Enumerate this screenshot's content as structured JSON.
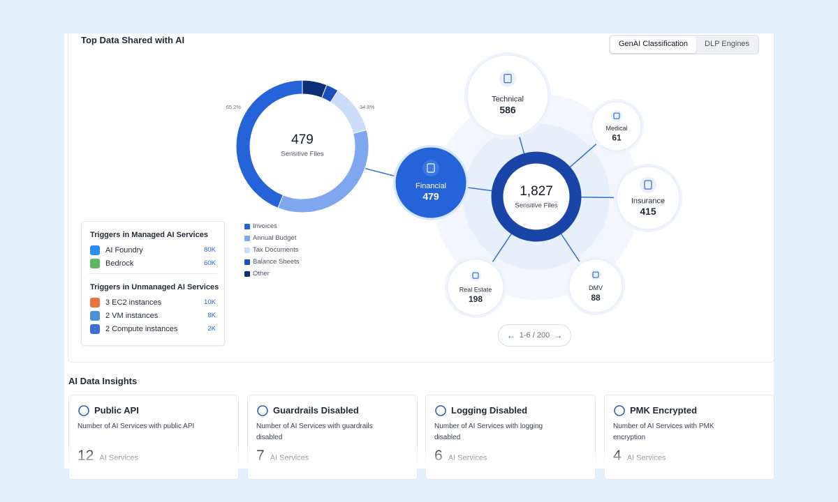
{
  "panel": {
    "title": "Top Data Shared with AI",
    "tabs": [
      "GenAI Classification",
      "DLP Engines"
    ]
  },
  "donut": {
    "type": "pie",
    "total": 479,
    "total_label": "Sensitive Files",
    "callouts": [
      "65.2%",
      "34.8%"
    ],
    "categories": [
      "Invoices",
      "Annual Budget",
      "Tax Documents",
      "Balance Sheets",
      "Other"
    ],
    "values": [
      44,
      35,
      12,
      3,
      6
    ],
    "colors": [
      "#2563d9",
      "#7ea7f0",
      "#cbdcf8",
      "#1c4fbd",
      "#0d2f78"
    ]
  },
  "triggers": {
    "managed": {
      "title": "Triggers in Managed AI Services",
      "items": [
        {
          "name": "AI Foundry",
          "count": "80K"
        },
        {
          "name": "Bedrock",
          "count": "60K"
        }
      ]
    },
    "unmanaged": {
      "title": "Triggers in Unmanaged AI Services",
      "items": [
        {
          "name": "3 EC2 instances",
          "count": "10K"
        },
        {
          "name": "2 VM instances",
          "count": "8K"
        },
        {
          "name": "2 Compute instances",
          "count": "2K"
        }
      ]
    }
  },
  "bubbles": {
    "center": {
      "value": "1,827",
      "label": "Sensitive Files"
    },
    "nodes": [
      {
        "label": "Financial",
        "value": 479
      },
      {
        "label": "Technical",
        "value": 586
      },
      {
        "label": "Medical",
        "value": 61
      },
      {
        "label": "Insurance",
        "value": 415
      },
      {
        "label": "DMV",
        "value": 88
      },
      {
        "label": "Real Estate",
        "value": 198
      }
    ]
  },
  "pager": "1-6 / 200",
  "insights": {
    "title": "AI Data Insights",
    "cards": [
      {
        "title": "Public API",
        "description": "Number of AI Services with public API",
        "count": 12,
        "unit": "AI Services"
      },
      {
        "title": "Guardrails Disabled",
        "description": "Number of AI Services with guardrails disabled",
        "count": 7,
        "unit": "AI Services"
      },
      {
        "title": "Logging Disabled",
        "description": "Number of AI Services with logging disabled",
        "count": 6,
        "unit": "AI Services"
      },
      {
        "title": "PMK Encrypted",
        "description": "Number of AI Services with PMK encryption",
        "count": 4,
        "unit": "AI Services"
      }
    ]
  }
}
